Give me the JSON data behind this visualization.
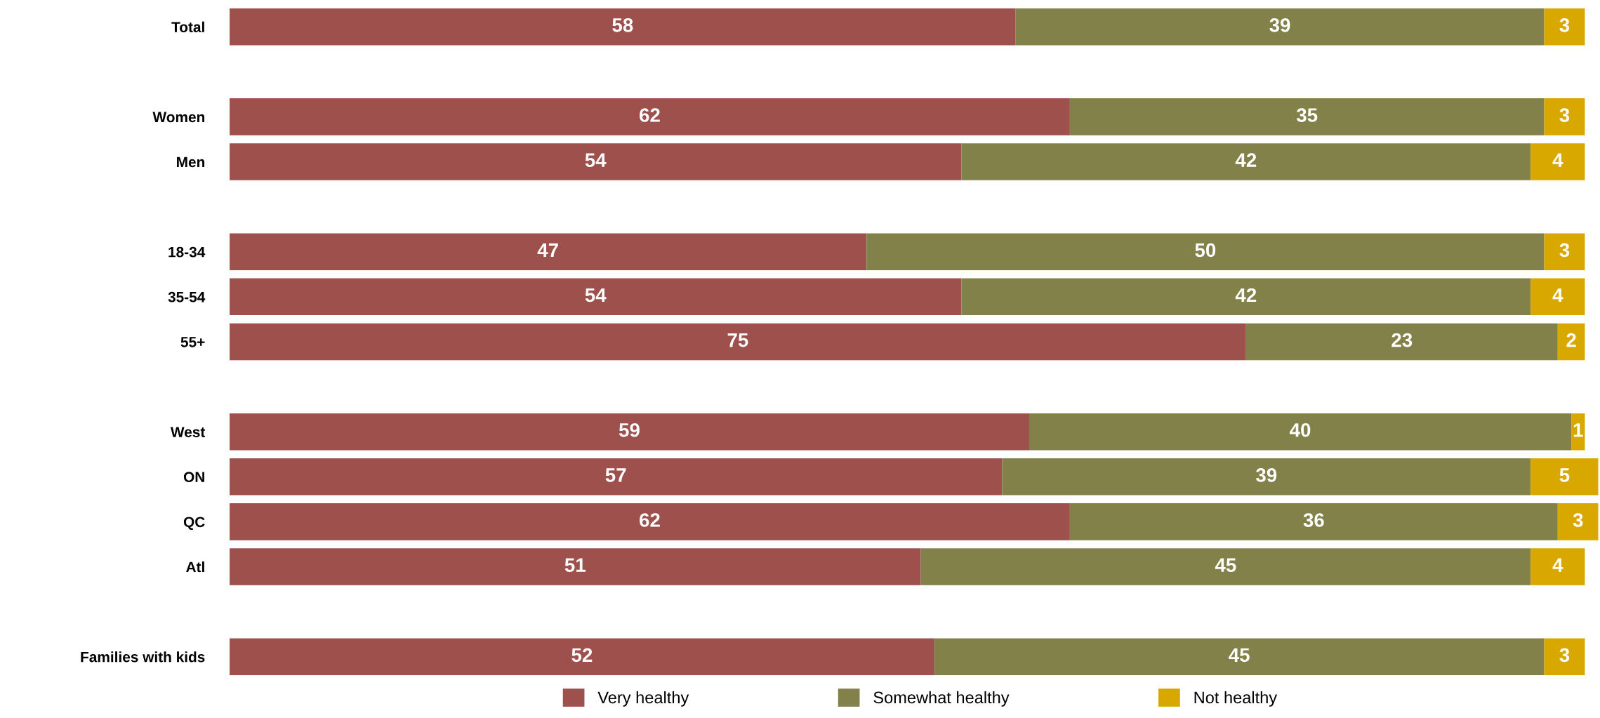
{
  "chart_data": {
    "type": "bar",
    "orientation": "horizontal",
    "stacked": true,
    "data_labels": true,
    "legend": "bottom",
    "grid": false,
    "categories": [
      "Total",
      null,
      "Women",
      "Men",
      null,
      "18-34",
      "35-54",
      "55+",
      null,
      "West",
      "ON",
      "QC",
      "Atl",
      null,
      "Families with kids"
    ],
    "series": [
      {
        "name": "Very healthy",
        "color": "#9e514c",
        "values": [
          58,
          null,
          62,
          54,
          null,
          47,
          54,
          75,
          null,
          59,
          57,
          62,
          51,
          null,
          52
        ]
      },
      {
        "name": "Somewhat healthy",
        "color": "#828149",
        "values": [
          39,
          null,
          35,
          42,
          null,
          50,
          42,
          23,
          null,
          40,
          39,
          36,
          45,
          null,
          45
        ]
      },
      {
        "name": "Not healthy",
        "color": "#d9a800",
        "values": [
          3,
          null,
          3,
          4,
          null,
          3,
          4,
          2,
          null,
          1,
          5,
          3,
          4,
          null,
          3
        ]
      }
    ]
  }
}
